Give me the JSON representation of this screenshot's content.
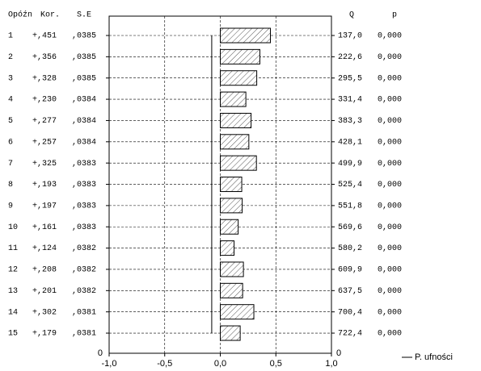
{
  "chart_data": {
    "type": "bar",
    "orientation": "horizontal",
    "headers": {
      "lag": "Opóźn",
      "kor": "Kor.",
      "se": "S.E",
      "q": "Q",
      "p": "p"
    },
    "categories": [
      "1",
      "2",
      "3",
      "4",
      "5",
      "6",
      "7",
      "8",
      "9",
      "10",
      "11",
      "12",
      "13",
      "14",
      "15"
    ],
    "values": [
      0.451,
      0.356,
      0.328,
      0.23,
      0.277,
      0.257,
      0.325,
      0.193,
      0.197,
      0.161,
      0.124,
      0.208,
      0.201,
      0.302,
      0.179
    ],
    "value_labels": [
      "+,451",
      "+,356",
      "+,328",
      "+,230",
      "+,277",
      "+,257",
      "+,325",
      "+,193",
      "+,197",
      "+,161",
      "+,124",
      "+,208",
      "+,201",
      "+,302",
      "+,179"
    ],
    "se": [
      ",0385",
      ",0385",
      ",0385",
      ",0384",
      ",0384",
      ",0384",
      ",0383",
      ",0383",
      ",0383",
      ",0383",
      ",0382",
      ",0382",
      ",0382",
      ",0381",
      ",0381"
    ],
    "q": [
      "137,0",
      "222,6",
      "295,5",
      "331,4",
      "383,3",
      "428,1",
      "499,9",
      "525,4",
      "551,8",
      "569,6",
      "580,2",
      "609,9",
      "637,5",
      "700,4",
      "722,4"
    ],
    "p": [
      "0,000",
      "0,000",
      "0,000",
      "0,000",
      "0,000",
      "0,000",
      "0,000",
      "0,000",
      "0,000",
      "0,000",
      "0,000",
      "0,000",
      "0,000",
      "0,000",
      "0,000"
    ],
    "confidence_limit": -0.077,
    "legend": "P. ufności",
    "y_axis_end_labels": [
      "0",
      "0"
    ],
    "xlim": [
      -1,
      1
    ],
    "xticks": [
      {
        "value": -1,
        "label": "-1,0"
      },
      {
        "value": -0.5,
        "label": "-0,5"
      },
      {
        "value": 0,
        "label": "0,0"
      },
      {
        "value": 0.5,
        "label": "0,5"
      },
      {
        "value": 1,
        "label": "1,0"
      }
    ],
    "grid": true,
    "color": "#555555"
  }
}
